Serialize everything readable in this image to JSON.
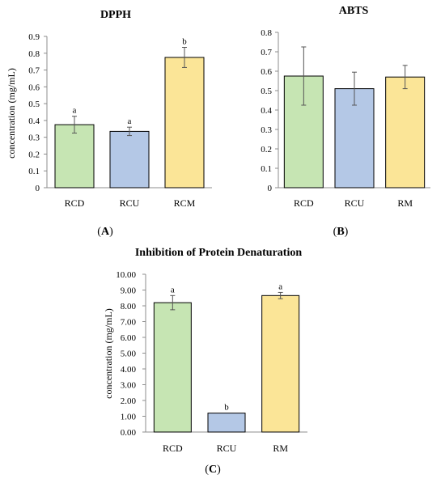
{
  "chart_data": [
    {
      "type": "bar",
      "title": "DPPH",
      "panel_label": "A",
      "ylabel": "concentration (mg/mL)",
      "categories": [
        "RCD",
        "RCU",
        "RCM"
      ],
      "values": [
        0.375,
        0.335,
        0.775
      ],
      "errors": [
        0.05,
        0.025,
        0.06
      ],
      "significance": [
        "a",
        "a",
        "b"
      ],
      "colors": [
        "#c6e5b3",
        "#b4c8e6",
        "#fbe597"
      ],
      "ylim": [
        0,
        0.9
      ],
      "yticks": [
        "0",
        "0.1",
        "0.2",
        "0.3",
        "0.4",
        "0.5",
        "0.6",
        "0.7",
        "0.8",
        "0.9"
      ]
    },
    {
      "type": "bar",
      "title": "ABTS",
      "panel_label": "B",
      "ylabel": "",
      "categories": [
        "RCD",
        "RCU",
        "RM"
      ],
      "values": [
        0.575,
        0.51,
        0.57
      ],
      "errors": [
        0.15,
        0.085,
        0.06
      ],
      "significance": [
        "",
        "",
        ""
      ],
      "colors": [
        "#c6e5b3",
        "#b4c8e6",
        "#fbe597"
      ],
      "ylim": [
        0,
        0.8
      ],
      "yticks": [
        "0",
        "0.1",
        "0.2",
        "0.3",
        "0.4",
        "0.5",
        "0.6",
        "0.7",
        "0.8"
      ]
    },
    {
      "type": "bar",
      "title": "Inhibition of Protein Denaturation",
      "panel_label": "C",
      "ylabel": "concentration (mg/mL)",
      "categories": [
        "RCD",
        "RCU",
        "RM"
      ],
      "values": [
        8.2,
        1.2,
        8.65
      ],
      "errors": [
        0.45,
        0.0,
        0.2
      ],
      "significance": [
        "a",
        "b",
        "a"
      ],
      "colors": [
        "#c6e5b3",
        "#b4c8e6",
        "#fbe597"
      ],
      "ylim": [
        0,
        10
      ],
      "yticks": [
        "0.00",
        "1.00",
        "2.00",
        "3.00",
        "4.00",
        "5.00",
        "6.00",
        "7.00",
        "8.00",
        "9.00",
        "10.00"
      ]
    }
  ]
}
